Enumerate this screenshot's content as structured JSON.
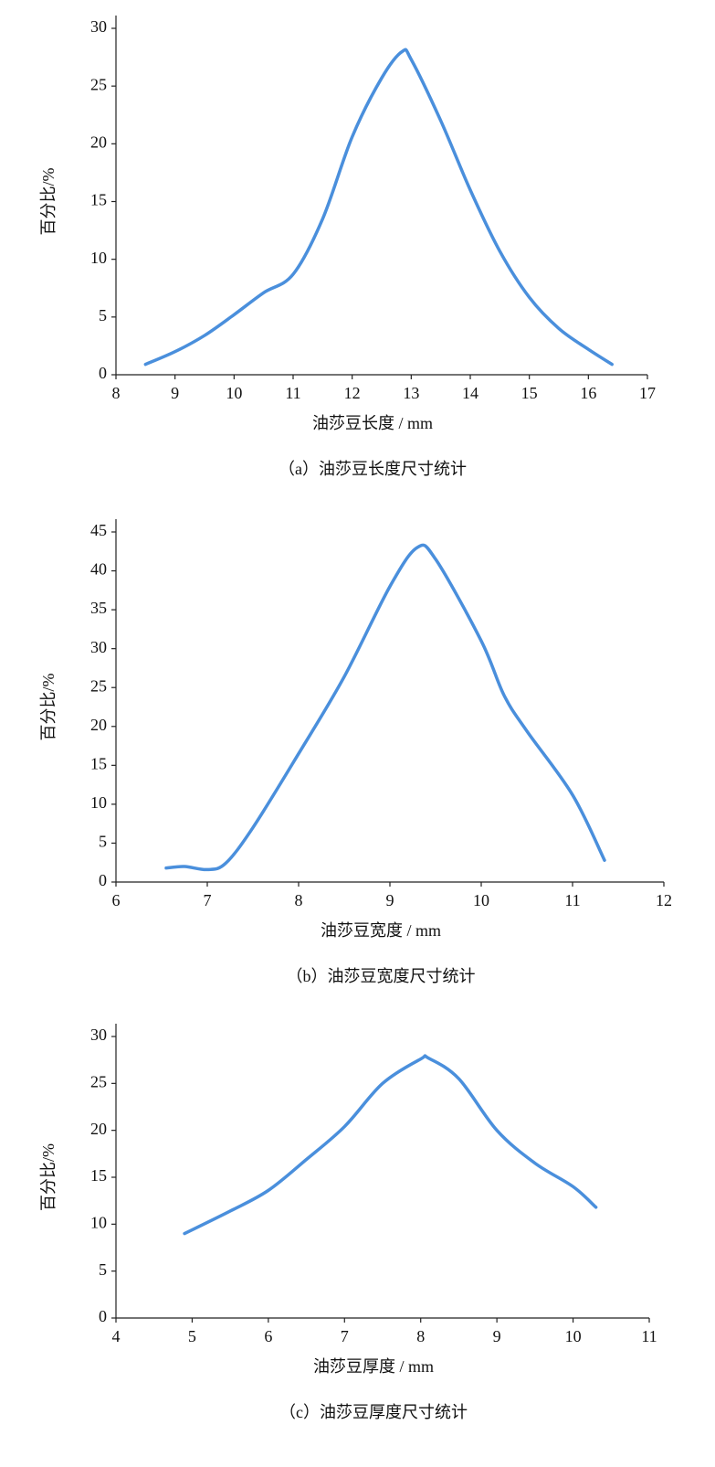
{
  "chart_data": [
    {
      "type": "line",
      "ylabel": "百分比/%",
      "xlabel": "油莎豆长度 / mm",
      "caption": "（a）油莎豆长度尺寸统计",
      "xlim": [
        8,
        17
      ],
      "xticks": [
        8,
        9,
        10,
        11,
        12,
        13,
        14,
        15,
        16,
        17
      ],
      "ylim": [
        0,
        30
      ],
      "yticks": [
        0,
        5,
        10,
        15,
        20,
        25,
        30
      ],
      "series": [
        {
          "color": "#4a8fdc",
          "x": [
            8.5,
            9,
            9.5,
            10,
            10.5,
            11,
            11.5,
            12,
            12.5,
            12.85,
            13,
            13.5,
            14,
            14.5,
            15,
            15.5,
            16,
            16.4
          ],
          "values": [
            0.9,
            2,
            3.4,
            5.2,
            7.1,
            8.7,
            13.5,
            20.6,
            25.7,
            28,
            27.3,
            22,
            16,
            10.7,
            6.7,
            4,
            2.2,
            0.9
          ]
        }
      ]
    },
    {
      "type": "line",
      "ylabel": "百分比/%",
      "xlabel": "油莎豆宽度 / mm",
      "caption": "（b）油莎豆宽度尺寸统计",
      "xlim": [
        6,
        12
      ],
      "xticks": [
        6,
        7,
        8,
        9,
        10,
        11,
        12
      ],
      "ylim": [
        0,
        45
      ],
      "yticks": [
        0,
        5,
        10,
        15,
        20,
        25,
        30,
        35,
        40,
        45
      ],
      "series": [
        {
          "color": "#4a8fdc",
          "x": [
            6.55,
            6.75,
            7,
            7.2,
            7.5,
            8,
            8.5,
            9,
            9.3,
            9.5,
            10,
            10.25,
            10.5,
            11,
            11.35
          ],
          "values": [
            1.8,
            2,
            1.6,
            2.4,
            7,
            16.5,
            26.4,
            38,
            43,
            41.5,
            31,
            24,
            19.4,
            11.2,
            2.8
          ]
        }
      ]
    },
    {
      "type": "line",
      "ylabel": "百分比/%",
      "xlabel": "油莎豆厚度 / mm",
      "caption": "（c）油莎豆厚度尺寸统计",
      "xlim": [
        4,
        11
      ],
      "xticks": [
        4,
        5,
        6,
        7,
        8,
        9,
        10,
        11
      ],
      "ylim": [
        0,
        30
      ],
      "yticks": [
        0,
        5,
        10,
        15,
        20,
        25,
        30
      ],
      "series": [
        {
          "color": "#4a8fdc",
          "x": [
            4.9,
            5.5,
            6,
            6.5,
            7,
            7.5,
            8,
            8.1,
            8.5,
            9,
            9.5,
            10,
            10.3
          ],
          "values": [
            9,
            11.4,
            13.6,
            16.9,
            20.4,
            25,
            27.6,
            27.7,
            25.5,
            20,
            16.5,
            14,
            11.8
          ]
        }
      ]
    }
  ]
}
